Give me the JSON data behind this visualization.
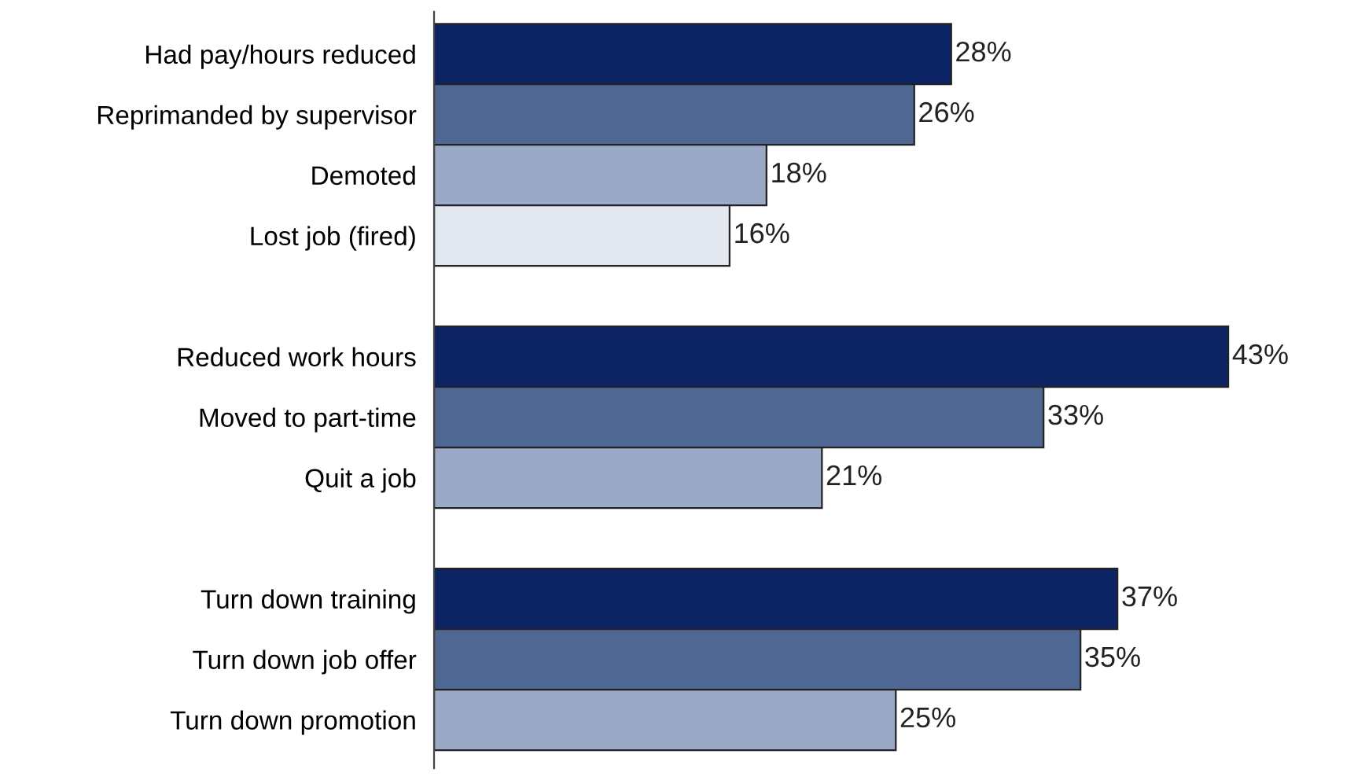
{
  "chart_data": {
    "type": "bar",
    "orientation": "horizontal",
    "categories": [
      "Had pay/hours reduced",
      "Reprimanded by supervisor",
      "Demoted",
      "Lost job (fired)",
      null,
      "Reduced work hours",
      "Moved to part-time",
      "Quit a job",
      null,
      "Turn down training",
      "Turn down job offer",
      "Turn down promotion"
    ],
    "values": [
      28,
      26,
      18,
      16,
      null,
      43,
      33,
      21,
      null,
      37,
      35,
      25
    ],
    "colors": [
      "#0c2463",
      "#4f6893",
      "#9aa9c6",
      "#e3e7f0",
      null,
      "#0c2463",
      "#4f6893",
      "#9aa9c6",
      null,
      "#0c2463",
      "#4f6893",
      "#9aa9c6"
    ],
    "value_labels": [
      "28%",
      "26%",
      "18%",
      "16%",
      null,
      "43%",
      "33%",
      "21%",
      null,
      "37%",
      "35%",
      "25%"
    ],
    "tick_labels": false,
    "grid": false,
    "legend": false
  }
}
